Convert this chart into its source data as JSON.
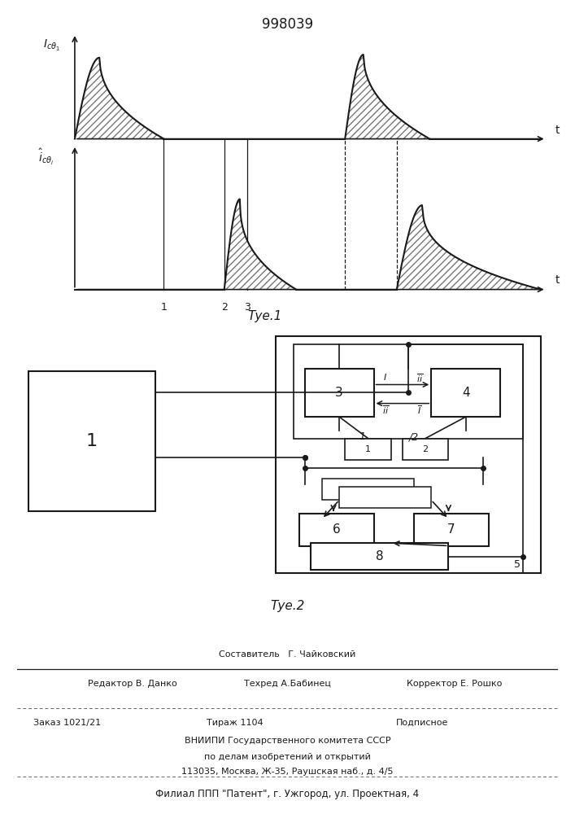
{
  "title_text": "998039",
  "fig1_caption": "Τуе.1",
  "fig2_caption": "Τуе.2",
  "line_color": "#1a1a1a",
  "footer_line1": "Составитель   Г. Чайковский",
  "footer_line2_left": "Редактор В. Данко",
  "footer_line2_mid": "Техред А.Бабинец",
  "footer_line2_right": "Корректор Е. Рошко",
  "footer_line3_left": "Заказ 1021/21",
  "footer_line3_mid": "Тираж 1104",
  "footer_line3_right": "Подписное",
  "footer_line4": "ВНИИПИ Государственного комитета СССР",
  "footer_line5": "по делам изобретений и открытий",
  "footer_line6": "113035, Москва, Ж-35, Раушская наб., д. 4/5",
  "footer_line7": "Филиал ППП \"Патент\", г. Ужгород, ул. Проектная, 4"
}
